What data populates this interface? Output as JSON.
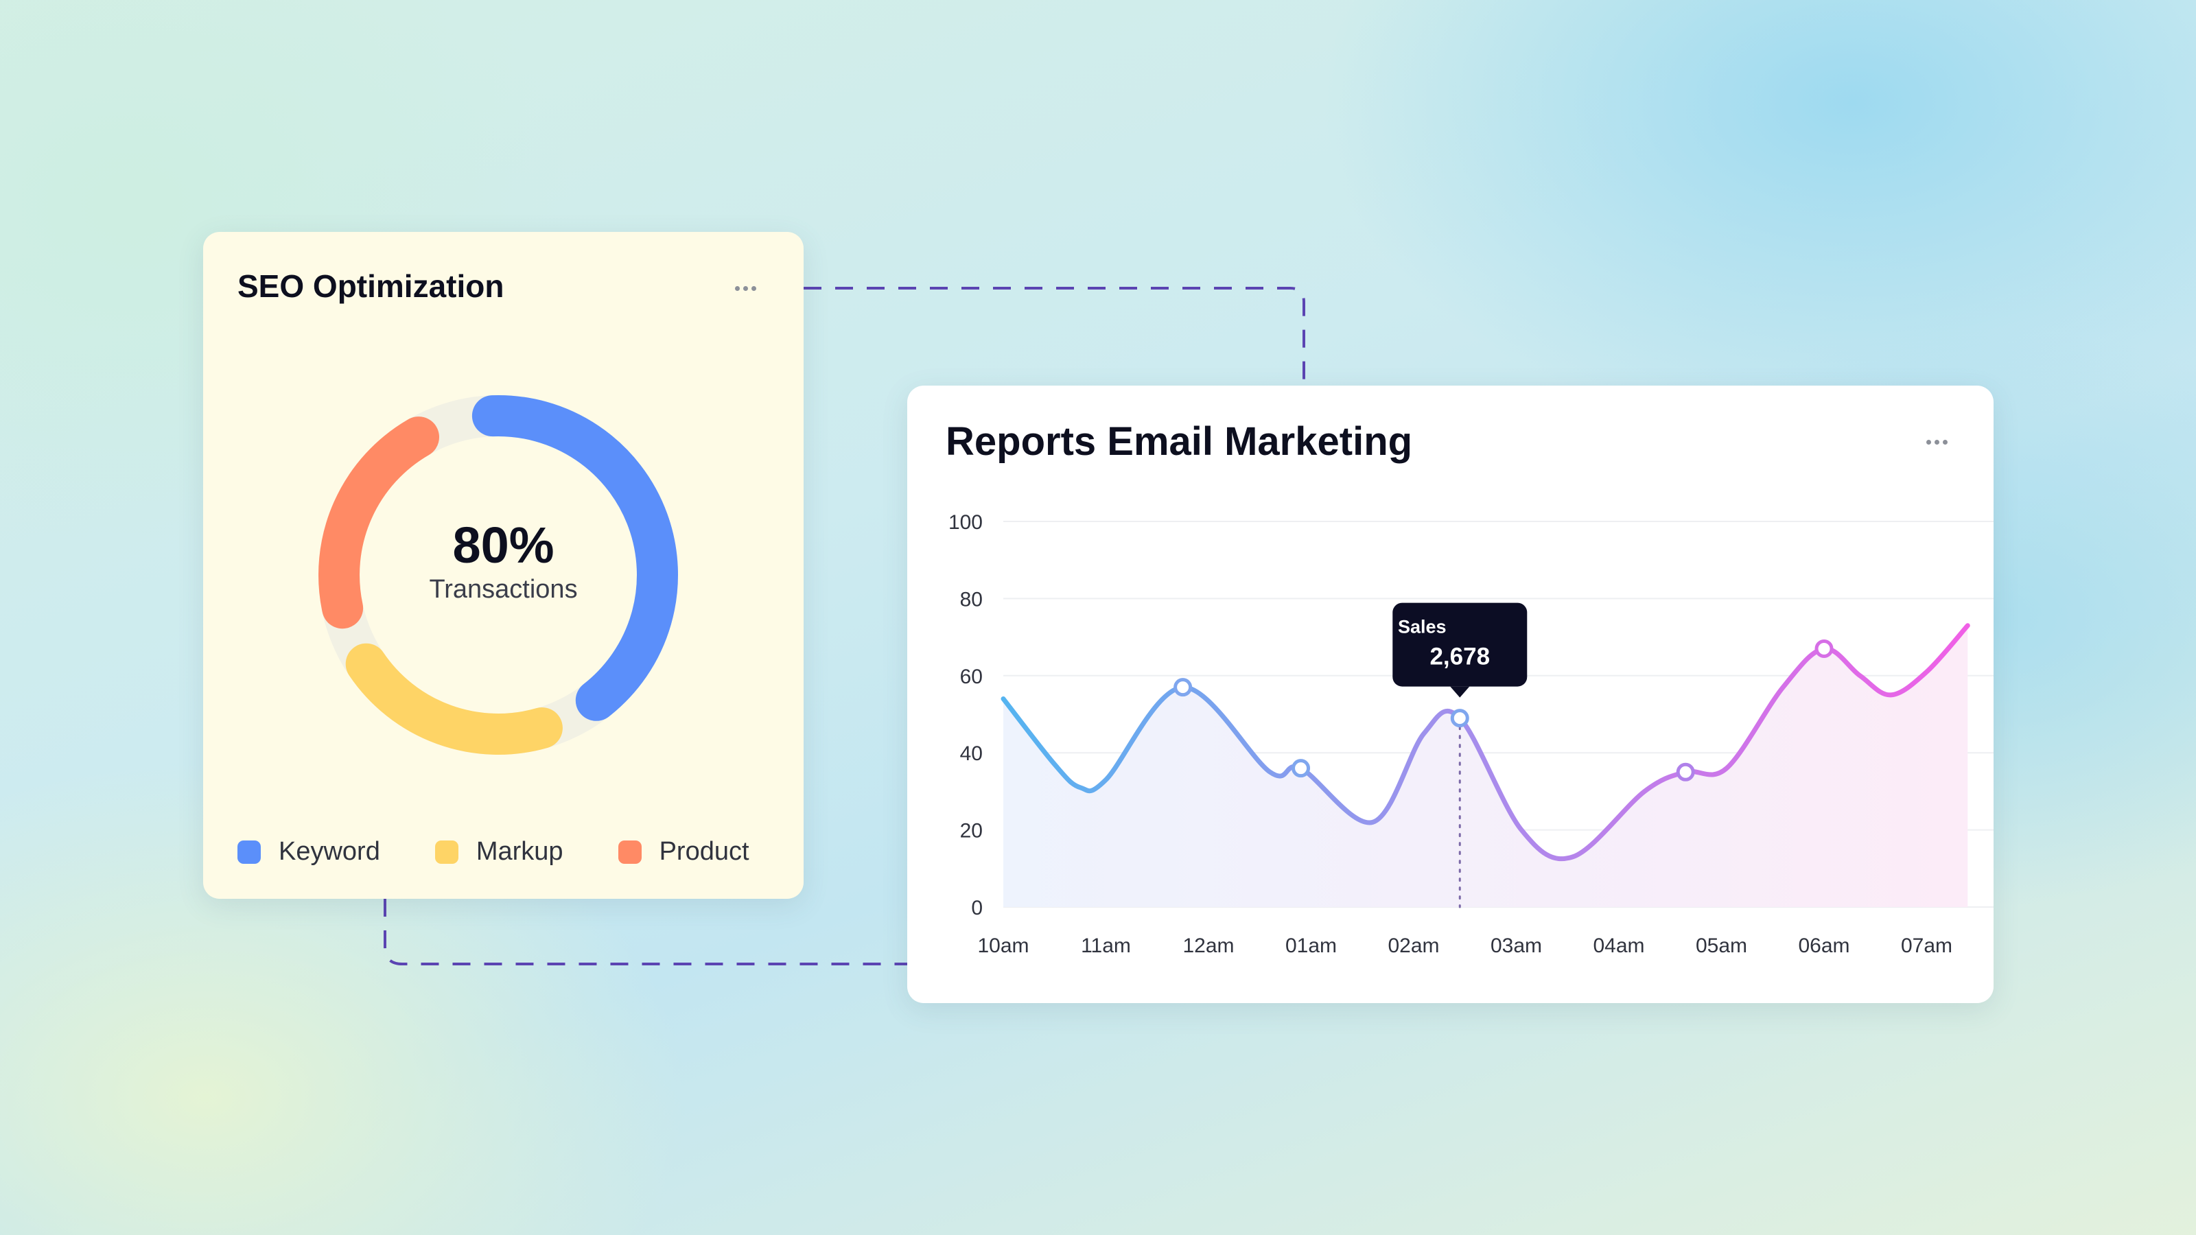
{
  "seo_card": {
    "title": "SEO Optimization",
    "center_value": "80%",
    "center_label": "Transactions",
    "legend": [
      {
        "label": "Keyword",
        "color": "#5b8ffa"
      },
      {
        "label": "Markup",
        "color": "#fed466"
      },
      {
        "label": "Product",
        "color": "#ff8a65"
      }
    ],
    "donut_segments": [
      {
        "name": "Keyword",
        "share": 0.4,
        "color": "#5b8ffa"
      },
      {
        "name": "Markup",
        "share": 0.2,
        "color": "#fed466"
      },
      {
        "name": "Product",
        "share": 0.2,
        "color": "#ff8a65"
      }
    ],
    "track_color": "#f2f1e4"
  },
  "report_card": {
    "title": "Reports  Email Marketing",
    "tooltip": {
      "label": "Sales",
      "value": "2,678"
    }
  },
  "chart_data": {
    "type": "line",
    "title": "Reports  Email Marketing",
    "xlabel": "",
    "ylabel": "",
    "categories": [
      "10am",
      "11am",
      "12am",
      "01am",
      "02am",
      "03am",
      "04am",
      "05am",
      "06am",
      "07am"
    ],
    "y_ticks": [
      0,
      20,
      40,
      60,
      80,
      100
    ],
    "ylim": [
      0,
      100
    ],
    "grid": true,
    "series": [
      {
        "points": [
          [
            0,
            54
          ],
          [
            0.5,
            37
          ],
          [
            0.75,
            31
          ],
          [
            1.0,
            33
          ],
          [
            1.75,
            57
          ],
          [
            2.6,
            35
          ],
          [
            2.9,
            36
          ],
          [
            3.6,
            22
          ],
          [
            4.1,
            45
          ],
          [
            4.45,
            49
          ],
          [
            5.05,
            20
          ],
          [
            5.55,
            13
          ],
          [
            6.25,
            30
          ],
          [
            6.65,
            35
          ],
          [
            7.05,
            36
          ],
          [
            7.6,
            57
          ],
          [
            8.0,
            67
          ],
          [
            8.35,
            60
          ],
          [
            8.65,
            55
          ],
          [
            9.0,
            61
          ],
          [
            9.4,
            73
          ]
        ],
        "markers": [
          [
            1.75,
            57
          ],
          [
            2.9,
            36
          ],
          [
            4.45,
            49
          ],
          [
            6.65,
            35
          ],
          [
            8.0,
            67
          ]
        ],
        "color_start": "#55b4f0",
        "color_end": "#f060e6"
      }
    ],
    "highlight": {
      "x": 4.45,
      "label": "Sales",
      "value": "2,678"
    }
  }
}
